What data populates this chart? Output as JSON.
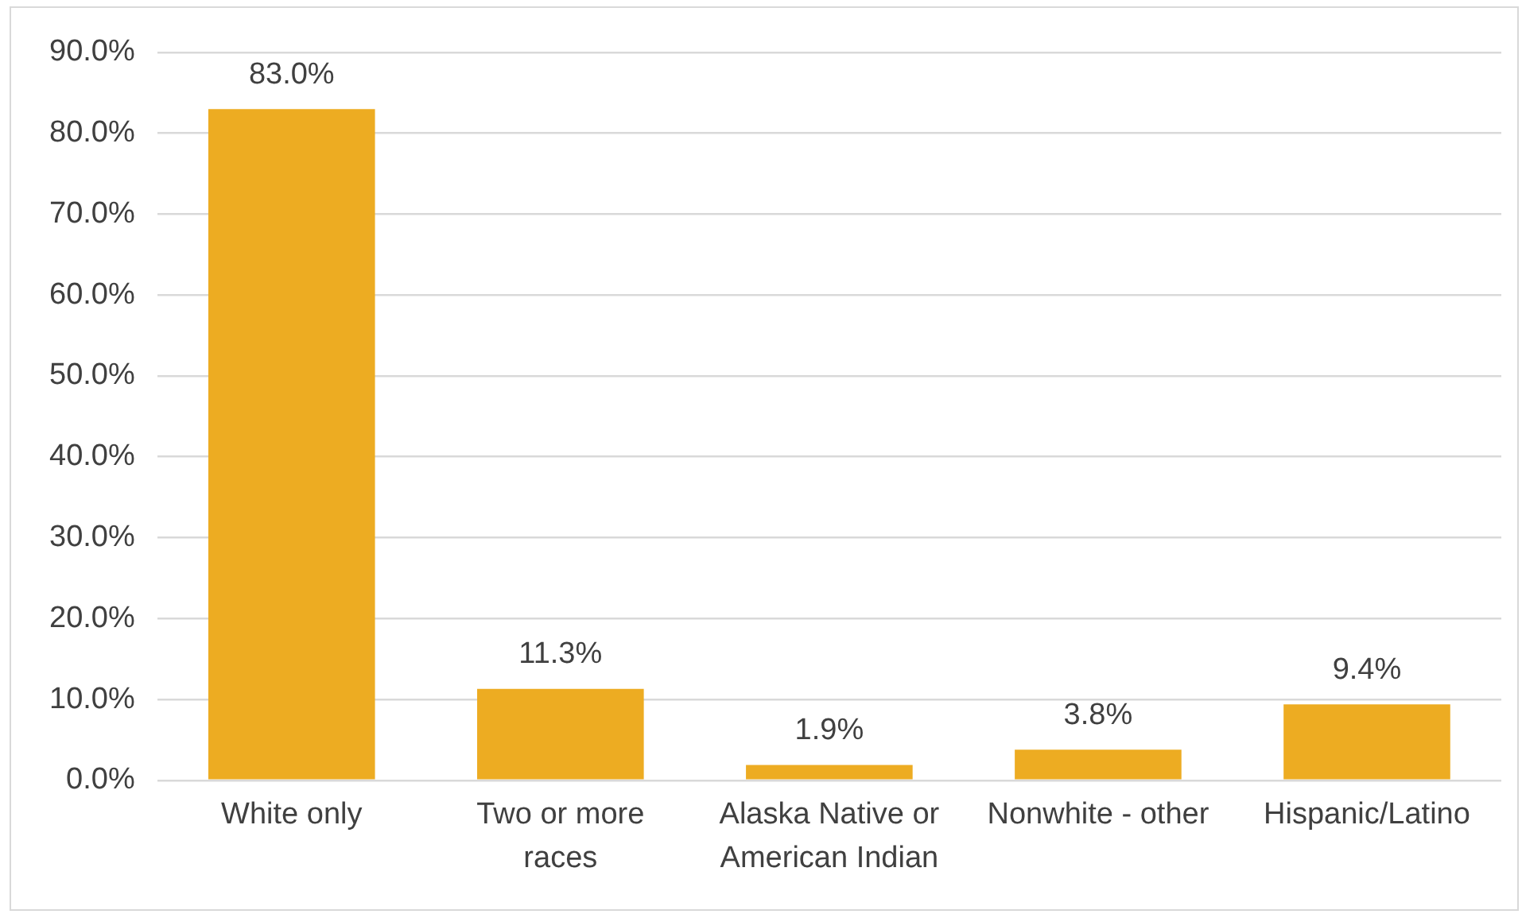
{
  "chart_data": {
    "type": "bar",
    "categories": [
      "White only",
      "Two or more races",
      "Alaska Native or American Indian",
      "Nonwhite - other",
      "Hispanic/Latino"
    ],
    "values": [
      83.0,
      11.3,
      1.9,
      3.8,
      9.4
    ],
    "value_labels": [
      "83.0%",
      "11.3%",
      "1.9%",
      "3.8%",
      "9.4%"
    ],
    "color": "#edac22",
    "ylim": [
      0,
      90
    ],
    "yticks": [
      {
        "value": 0,
        "label": "0.0%"
      },
      {
        "value": 10,
        "label": "10.0%"
      },
      {
        "value": 20,
        "label": "20.0%"
      },
      {
        "value": 30,
        "label": "30.0%"
      },
      {
        "value": 40,
        "label": "40.0%"
      },
      {
        "value": 50,
        "label": "50.0%"
      },
      {
        "value": 60,
        "label": "60.0%"
      },
      {
        "value": 70,
        "label": "70.0%"
      },
      {
        "value": 80,
        "label": "80.0%"
      },
      {
        "value": 90,
        "label": "90.0%"
      }
    ],
    "grid": "y",
    "legend": false
  }
}
